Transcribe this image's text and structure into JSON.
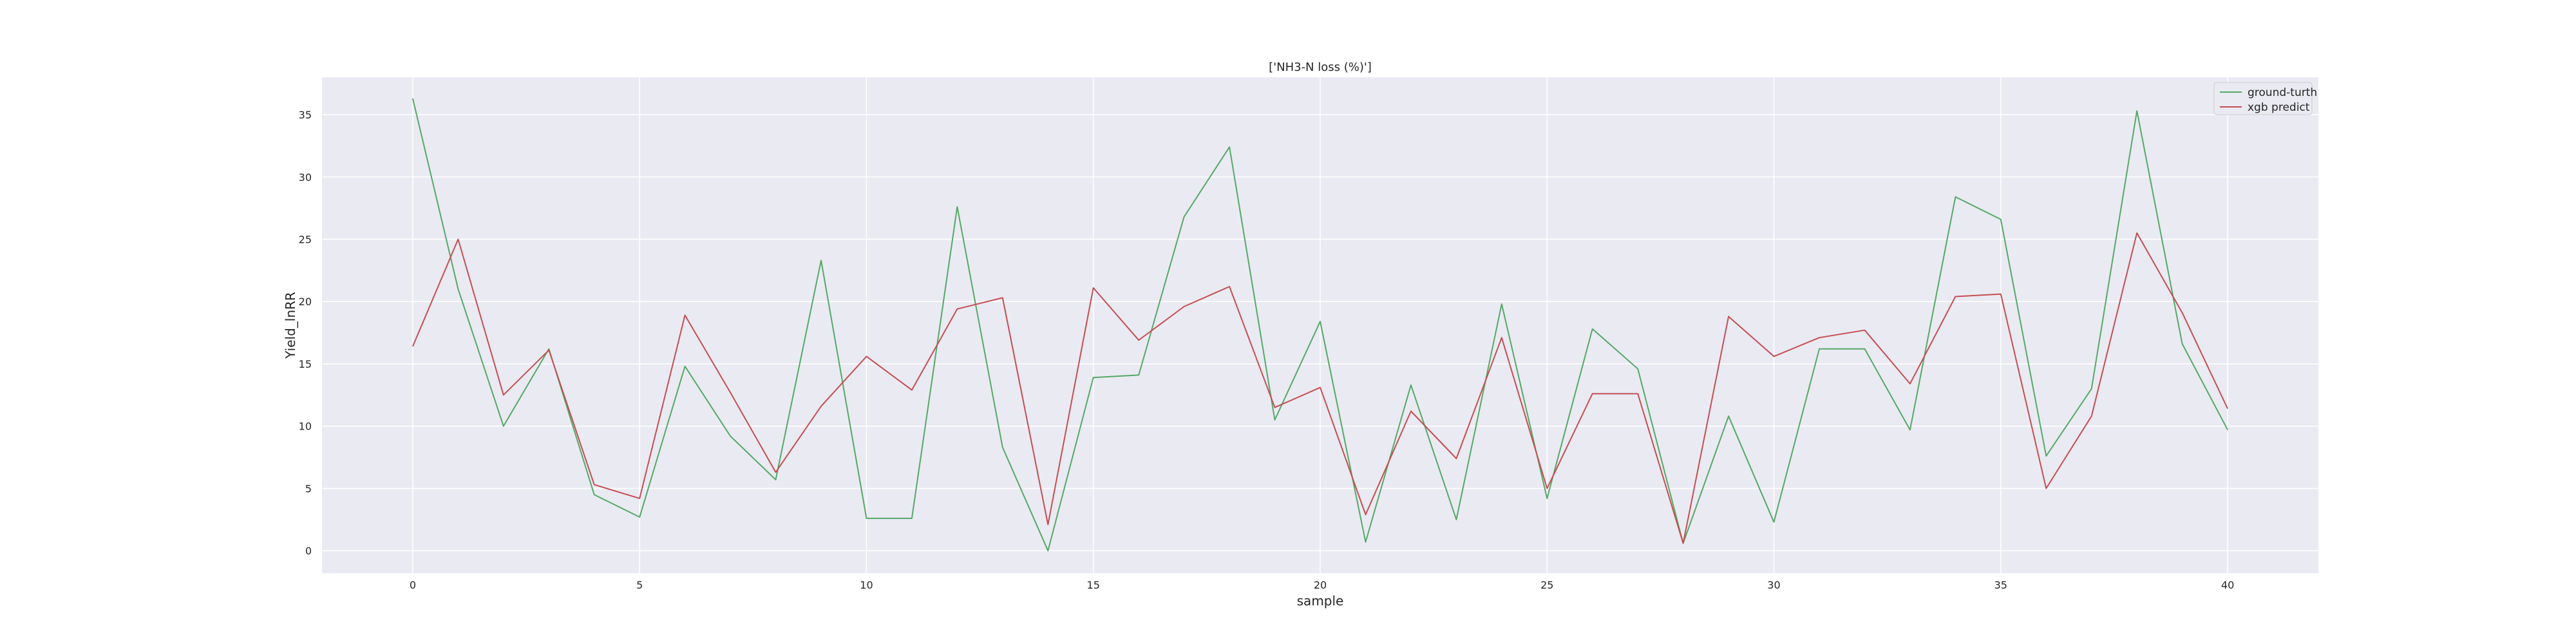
{
  "chart_data": {
    "type": "line",
    "title": "['NH3-N loss (%)']",
    "xlabel": "sample",
    "ylabel": "Yield_lnRR",
    "xlim": [
      -2,
      42
    ],
    "ylim": [
      -1.8,
      38.0
    ],
    "xticks": [
      0,
      5,
      10,
      15,
      20,
      25,
      30,
      35,
      40
    ],
    "yticks": [
      0,
      5,
      10,
      15,
      20,
      25,
      30,
      35
    ],
    "grid": true,
    "legend_position": "top-right",
    "x": [
      0,
      1,
      2,
      3,
      4,
      5,
      6,
      7,
      8,
      9,
      10,
      11,
      12,
      13,
      14,
      15,
      16,
      17,
      18,
      19,
      20,
      21,
      22,
      23,
      24,
      25,
      26,
      27,
      28,
      29,
      30,
      31,
      32,
      33,
      34,
      35,
      36,
      37,
      38,
      39,
      40
    ],
    "series": [
      {
        "name": "ground-turth",
        "color": "#55a868",
        "values": [
          36.3,
          21.0,
          10.0,
          16.2,
          4.5,
          2.7,
          14.8,
          9.2,
          5.7,
          23.3,
          2.6,
          2.6,
          27.6,
          8.3,
          0.0,
          13.9,
          14.1,
          26.8,
          32.4,
          10.5,
          18.4,
          0.7,
          13.3,
          2.5,
          19.8,
          4.2,
          17.8,
          14.6,
          0.6,
          10.8,
          2.3,
          16.2,
          16.2,
          9.7,
          28.4,
          26.6,
          7.6,
          13.0,
          35.3,
          16.6,
          9.7
        ]
      },
      {
        "name": "xgb predict",
        "color": "#c44e52",
        "values": [
          16.4,
          25.0,
          12.5,
          16.1,
          5.3,
          4.2,
          18.9,
          12.7,
          6.3,
          11.6,
          15.6,
          12.9,
          19.4,
          20.3,
          2.1,
          21.1,
          16.9,
          19.6,
          21.2,
          11.5,
          13.1,
          2.9,
          11.2,
          7.4,
          17.1,
          5.0,
          12.6,
          12.6,
          0.6,
          18.8,
          15.6,
          17.1,
          17.7,
          13.4,
          20.4,
          20.6,
          5.0,
          10.8,
          25.5,
          19.1,
          11.4
        ]
      }
    ]
  }
}
